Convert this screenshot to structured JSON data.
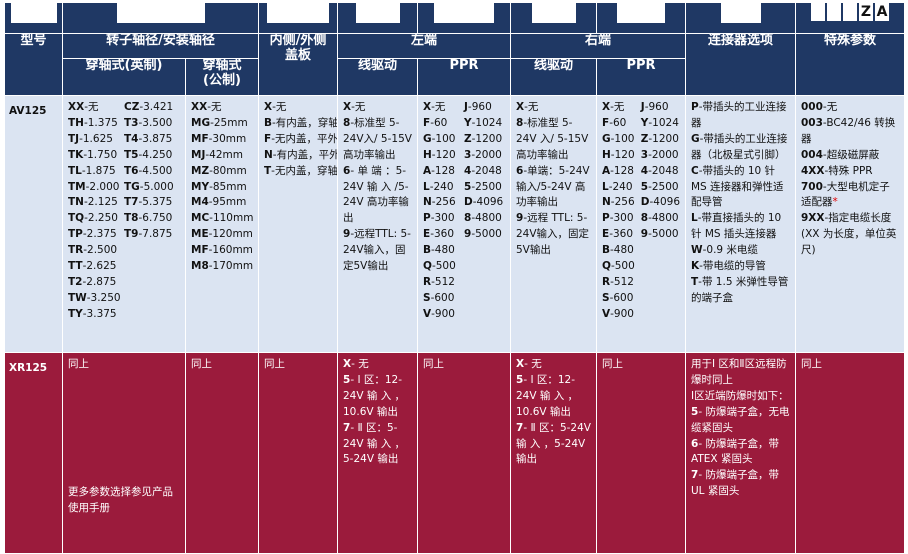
{
  "header": {
    "model": "型号",
    "rotor": "转子轴径/安装轴径",
    "rotor_imperial": "穿轴式(英制)",
    "rotor_metric_1": "穿轴式",
    "rotor_metric_2": "(公制)",
    "cover_1": "内侧/外侧",
    "cover_2": "盖板",
    "left": "左端",
    "right": "右端",
    "line_driver": "线驱动",
    "ppr": "PPR",
    "connector": "连接器选项",
    "special": "特殊参数",
    "za": [
      "Z",
      "A"
    ]
  },
  "av": {
    "model": "AV125",
    "imperial_a": [
      {
        "k": "XX",
        "v": "-无"
      },
      {
        "k": "TH",
        "v": "-1.375"
      },
      {
        "k": "TJ",
        "v": "-1.625"
      },
      {
        "k": "TK",
        "v": "-1.750"
      },
      {
        "k": "TL",
        "v": "-1.875"
      },
      {
        "k": "TM",
        "v": "-2.000"
      },
      {
        "k": "TN",
        "v": "-2.125"
      },
      {
        "k": "TQ",
        "v": "-2.250"
      },
      {
        "k": "TP",
        "v": "-2.375"
      },
      {
        "k": "TR",
        "v": "-2.500"
      },
      {
        "k": "TT",
        "v": "-2.625"
      },
      {
        "k": "T2",
        "v": "-2.875"
      },
      {
        "k": "TW",
        "v": "-3.250"
      },
      {
        "k": "TY",
        "v": "-3.375"
      }
    ],
    "imperial_b": [
      {
        "k": "CZ",
        "v": "-3.421"
      },
      {
        "k": "T3",
        "v": "-3.500"
      },
      {
        "k": "T4",
        "v": "-3.875"
      },
      {
        "k": "T5",
        "v": "-4.250"
      },
      {
        "k": "T6",
        "v": "-4.500"
      },
      {
        "k": "TG",
        "v": "-5.000"
      },
      {
        "k": "T7",
        "v": "-5.375"
      },
      {
        "k": "T8",
        "v": "-6.750"
      },
      {
        "k": "T9",
        "v": "-7.875"
      }
    ],
    "metric": [
      {
        "k": "XX",
        "v": "-无"
      },
      {
        "k": "MG",
        "v": "-25mm"
      },
      {
        "k": "MF",
        "v": "-30mm"
      },
      {
        "k": "MJ",
        "v": "-42mm"
      },
      {
        "k": "MZ",
        "v": "-80mm"
      },
      {
        "k": "MY",
        "v": "-85mm"
      },
      {
        "k": "M4",
        "v": "-95mm"
      },
      {
        "k": "MC",
        "v": "-110mm"
      },
      {
        "k": "ME",
        "v": "-120mm"
      },
      {
        "k": "MF",
        "v": "-160mm"
      },
      {
        "k": "M8",
        "v": "-170mm"
      }
    ],
    "cover": [
      {
        "k": "X",
        "v": "-无",
        "star": ""
      },
      {
        "k": "B",
        "v": "-有内盖，穿轴式外盖",
        "star": "*"
      },
      {
        "k": "F",
        "v": "-无内盖，平外盖",
        "star": ""
      },
      {
        "k": "N",
        "v": "-有内盖，平外盖",
        "star": "*"
      },
      {
        "k": "T",
        "v": "-无内盖，穿轴式外盖",
        "star": ""
      }
    ],
    "left_driver": [
      {
        "k": "X",
        "v": "-无"
      },
      {
        "k": "8",
        "v": "-标准型 5-24V入/ 5-15V 高功率输出"
      },
      {
        "k": "6",
        "v": "- 单 端 ：5-24V 输 入 /5-24V 高功率输出"
      },
      {
        "k": "9",
        "v": "-远程TTL: 5-24V输入，固定5V输出"
      }
    ],
    "ppr_a": [
      {
        "k": "X",
        "v": "-无"
      },
      {
        "k": "F",
        "v": "-60"
      },
      {
        "k": "G",
        "v": "-100"
      },
      {
        "k": "H",
        "v": "-120"
      },
      {
        "k": "A",
        "v": "-128"
      },
      {
        "k": "L",
        "v": "-240"
      },
      {
        "k": "N",
        "v": "-256"
      },
      {
        "k": "P",
        "v": "-300"
      },
      {
        "k": "E",
        "v": "-360"
      },
      {
        "k": "B",
        "v": "-480"
      },
      {
        "k": "Q",
        "v": "-500"
      },
      {
        "k": "R",
        "v": "-512"
      },
      {
        "k": "S",
        "v": "-600"
      },
      {
        "k": "V",
        "v": "-900"
      }
    ],
    "ppr_b": [
      {
        "k": "J",
        "v": "-960"
      },
      {
        "k": "Y",
        "v": "-1024"
      },
      {
        "k": "Z",
        "v": "-1200"
      },
      {
        "k": "3",
        "v": "-2000"
      },
      {
        "k": "4",
        "v": "-2048"
      },
      {
        "k": "5",
        "v": "-2500"
      },
      {
        "k": "D",
        "v": "-4096"
      },
      {
        "k": "8",
        "v": "-4800"
      },
      {
        "k": "9",
        "v": "-5000"
      }
    ],
    "right_driver": [
      {
        "k": "X",
        "v": "-无"
      },
      {
        "k": "8",
        "v": "-标准型 5-24V 入/ 5-15V 高功率输出"
      },
      {
        "k": "6",
        "v": "-单端：5-24V输入/5-24V 高功率输出"
      },
      {
        "k": "9",
        "v": "-远程 TTL: 5-24V输入，固定5V输出"
      }
    ],
    "connector": [
      {
        "k": "P",
        "v": "-带插头的工业连接器"
      },
      {
        "k": "G",
        "v": "-带插头的工业连接器（北极星式引脚）"
      },
      {
        "k": "C",
        "v": "-带插头的 10 针 MS 连接器和弹性适配导管"
      },
      {
        "k": "L",
        "v": "-带直接插头的 10 针 MS 插头连接器"
      },
      {
        "k": "W",
        "v": "-0.9 米电缆"
      },
      {
        "k": "K",
        "v": "-带电缆的导管"
      },
      {
        "k": "T",
        "v": "-带 1.5 米弹性导管的端子盒"
      }
    ],
    "special": [
      {
        "k": "000",
        "v": "-无",
        "star": ""
      },
      {
        "k": "003",
        "v": "-BC42/46 转换器",
        "star": ""
      },
      {
        "k": "004",
        "v": "-超级磁屏蔽",
        "star": ""
      },
      {
        "k": "4XX",
        "v": "-特殊 PPR",
        "star": ""
      },
      {
        "k": "700",
        "v": "-大型电机定子适配器",
        "star": "*"
      },
      {
        "k": "9XX",
        "v": "-指定电缆长度(XX 为长度，单位英尺)",
        "star": ""
      }
    ]
  },
  "xr": {
    "model": "XR125",
    "same": "同上",
    "more_note": "更多参数选择参见产品使用手册",
    "left_driver": [
      {
        "k": "X",
        "v": "- 无"
      },
      {
        "k": "5",
        "v": "- Ⅰ 区：12-24V 输 入 ，10.6V 输出"
      },
      {
        "k": "7",
        "v": "- Ⅱ 区：5-24V 输 入 ，5-24V 输出"
      }
    ],
    "right_driver": [
      {
        "k": "X",
        "v": "- 无"
      },
      {
        "k": "5",
        "v": "- Ⅰ 区：12-24V 输 入 ，10.6V 输出"
      },
      {
        "k": "7",
        "v": "- Ⅱ 区：5-24V 输 入 ，5-24V 输出"
      }
    ],
    "connector_intro": "用于Ⅰ 区和Ⅱ区远程防爆时同上",
    "connector_intro2": "Ⅰ区近端防爆时如下：",
    "connector": [
      {
        "k": "5",
        "v": "- 防爆端子盒，无电缆紧固头"
      },
      {
        "k": "6",
        "v": "- 防爆端子盒，带 ATEX 紧固头"
      },
      {
        "k": "7",
        "v": "- 防爆端子盒，带 UL 紧固头"
      }
    ]
  }
}
